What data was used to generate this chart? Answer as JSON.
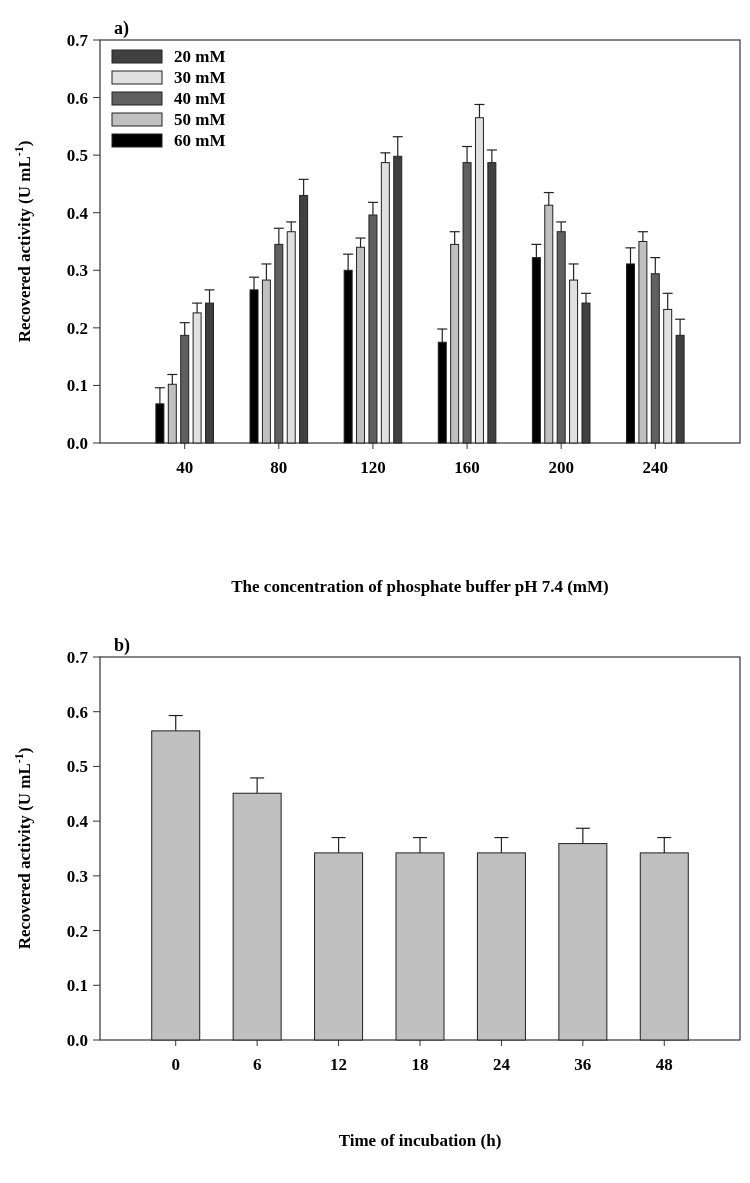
{
  "chart_data": [
    {
      "type": "bar",
      "title": "a)",
      "xlabel": "The concentration of phosphate buffer pH 7.4 (mM)",
      "ylabel": "Recovered activity (U mL$^{-1}$)",
      "categories": [
        "40",
        "80",
        "120",
        "160",
        "200",
        "240"
      ],
      "series": [
        {
          "name": "20 mM",
          "color": "#404040",
          "values": [
            0.243,
            0.43,
            0.498,
            0.487,
            0.243,
            0.187
          ],
          "errors": [
            0.023,
            0.028,
            0.034,
            0.022,
            0.017,
            0.028
          ]
        },
        {
          "name": "30 mM",
          "color": "#e0e0e0",
          "values": [
            0.226,
            0.367,
            0.487,
            0.565,
            0.283,
            0.232
          ],
          "errors": [
            0.017,
            0.017,
            0.017,
            0.023,
            0.028,
            0.028
          ]
        },
        {
          "name": "40 mM",
          "color": "#606060",
          "values": [
            0.187,
            0.345,
            0.396,
            0.487,
            0.367,
            0.294
          ],
          "errors": [
            0.022,
            0.028,
            0.022,
            0.028,
            0.017,
            0.028
          ]
        },
        {
          "name": "50 mM",
          "color": "#c0c0c0",
          "values": [
            0.102,
            0.283,
            0.34,
            0.345,
            0.413,
            0.35
          ],
          "errors": [
            0.017,
            0.028,
            0.016,
            0.022,
            0.022,
            0.017
          ]
        },
        {
          "name": "60 mM",
          "color": "#000000",
          "values": [
            0.068,
            0.266,
            0.3,
            0.175,
            0.322,
            0.311
          ],
          "errors": [
            0.028,
            0.022,
            0.028,
            0.023,
            0.023,
            0.028
          ]
        }
      ],
      "ylim": [
        0,
        0.7
      ],
      "yticks": [
        {
          "value": 0,
          "label": "0.0"
        },
        0.1,
        0.2,
        0.3,
        0.4,
        0.5,
        0.6,
        0.7
      ],
      "legend": "top left"
    },
    {
      "type": "bar",
      "title": "b)",
      "xlabel": "Time of incubation (h)",
      "ylabel": "Recovered activity (U mL$^{-1}$)",
      "categories": [
        "0",
        "6",
        "12",
        "18",
        "24",
        "36",
        "48"
      ],
      "values": [
        0.565,
        0.451,
        0.342,
        0.342,
        0.342,
        0.359,
        0.342
      ],
      "errors": [
        0.028,
        0.028,
        0.028,
        0.028,
        0.028,
        0.028,
        0.028
      ],
      "color": "#c0c0c0",
      "ylim": [
        0,
        0.7
      ],
      "yticks": [
        {
          "value": 0,
          "label": "0.0"
        },
        0.1,
        0.2,
        0.3,
        0.4,
        0.5,
        0.6,
        0.7
      ]
    }
  ]
}
